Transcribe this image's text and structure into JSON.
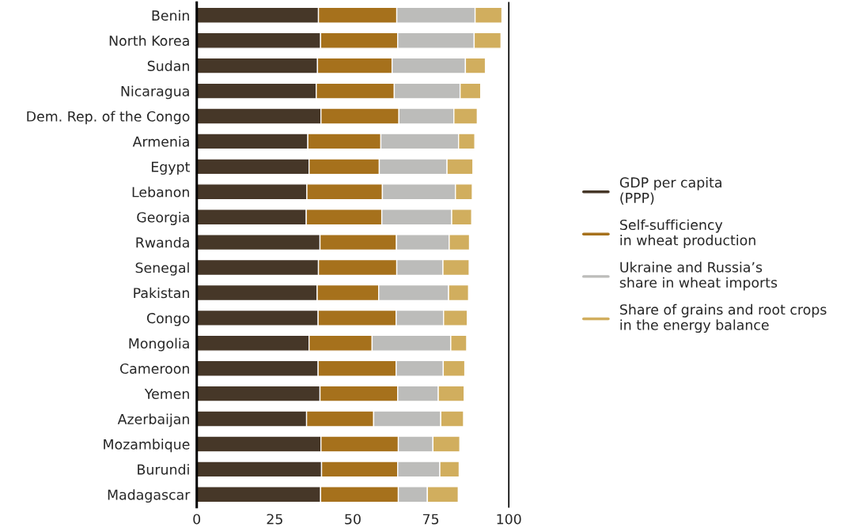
{
  "chart_data": {
    "type": "bar",
    "orientation": "horizontal",
    "stacked": true,
    "categories": [
      "Benin",
      "North Korea",
      "Sudan",
      "Nicaragua",
      "Dem. Rep. of the Congo",
      "Armenia",
      "Egypt",
      "Lebanon",
      "Georgia",
      "Rwanda",
      "Senegal",
      "Pakistan",
      "Congo",
      "Mongolia",
      "Cameroon",
      "Yemen",
      "Azerbaijan",
      "Mozambique",
      "Burundi",
      "Madagascar"
    ],
    "series": [
      {
        "name": "GDP per capita\n(PPP)",
        "color": "#463728",
        "values": [
          39.0,
          39.7,
          38.7,
          38.3,
          39.8,
          35.6,
          36.0,
          35.3,
          35.1,
          39.5,
          39.0,
          38.6,
          38.9,
          36.0,
          38.9,
          39.5,
          35.2,
          39.8,
          40.0,
          39.7
        ]
      },
      {
        "name": "Self-sufficiency\nin wheat production",
        "color": "#a6711c",
        "values": [
          25.1,
          24.7,
          23.9,
          25.0,
          25.0,
          23.4,
          22.5,
          24.2,
          24.2,
          24.5,
          25.1,
          19.7,
          25.0,
          20.2,
          25.0,
          24.9,
          21.5,
          24.8,
          24.4,
          24.9
        ]
      },
      {
        "name": "Ukraine and Russia’s\nshare in wheat imports",
        "color": "#bcbcba",
        "values": [
          25.1,
          24.5,
          23.5,
          21.1,
          17.6,
          24.9,
          21.7,
          23.4,
          22.4,
          16.9,
          14.8,
          22.4,
          15.2,
          25.2,
          15.1,
          13.0,
          21.5,
          11.1,
          13.5,
          9.3
        ]
      },
      {
        "name": "Share of grains and root crops\nin the energy balance",
        "color": "#d1ae5e",
        "values": [
          8.6,
          8.6,
          6.4,
          6.6,
          7.5,
          5.2,
          8.3,
          5.4,
          6.4,
          6.5,
          8.4,
          6.4,
          7.6,
          5.1,
          6.9,
          8.3,
          7.3,
          8.6,
          6.2,
          9.9
        ]
      }
    ],
    "xlim": [
      0,
      100
    ],
    "xticks": [
      0,
      25,
      50,
      75,
      100
    ],
    "grid": false,
    "legend": "right"
  }
}
